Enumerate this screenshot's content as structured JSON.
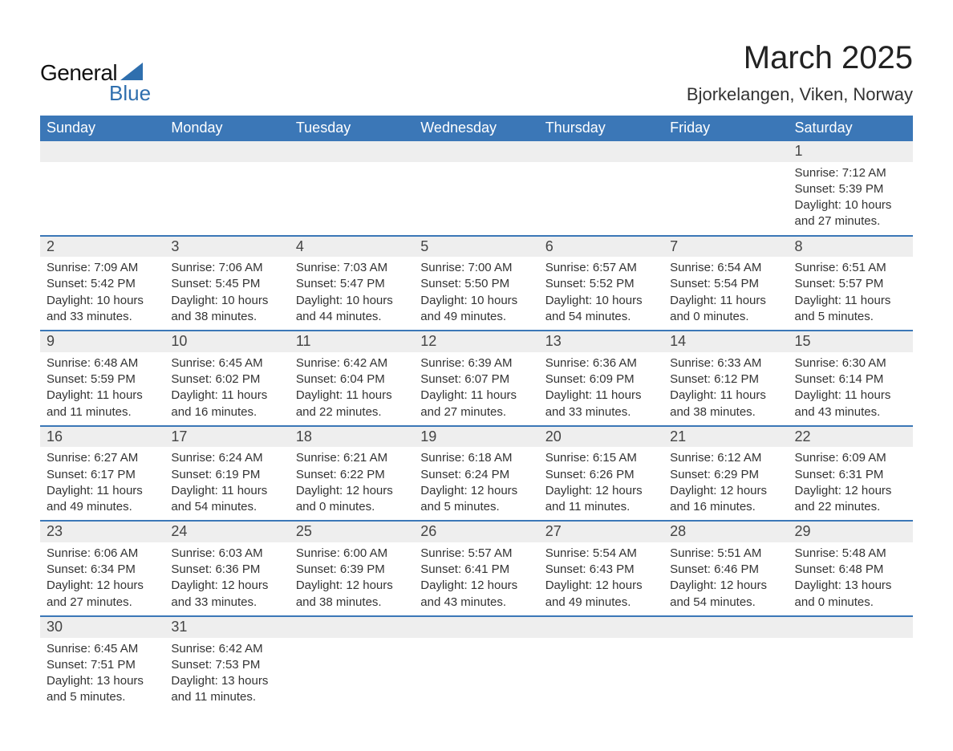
{
  "logo": {
    "general": "General",
    "blue": "Blue"
  },
  "title": {
    "month": "March 2025",
    "location": "Bjorkelangen, Viken, Norway"
  },
  "colors": {
    "header_bg": "#3b77b7",
    "header_text": "#ffffff",
    "daynum_bg": "#eeeeee",
    "border": "#3b77b7",
    "text": "#333333",
    "logo_blue": "#2f6fae"
  },
  "calendar": {
    "day_headers": [
      "Sunday",
      "Monday",
      "Tuesday",
      "Wednesday",
      "Thursday",
      "Friday",
      "Saturday"
    ],
    "weeks": [
      {
        "days": [
          null,
          null,
          null,
          null,
          null,
          null,
          {
            "n": "1",
            "sunrise": "Sunrise: 7:12 AM",
            "sunset": "Sunset: 5:39 PM",
            "daylight": "Daylight: 10 hours and 27 minutes."
          }
        ]
      },
      {
        "days": [
          {
            "n": "2",
            "sunrise": "Sunrise: 7:09 AM",
            "sunset": "Sunset: 5:42 PM",
            "daylight": "Daylight: 10 hours and 33 minutes."
          },
          {
            "n": "3",
            "sunrise": "Sunrise: 7:06 AM",
            "sunset": "Sunset: 5:45 PM",
            "daylight": "Daylight: 10 hours and 38 minutes."
          },
          {
            "n": "4",
            "sunrise": "Sunrise: 7:03 AM",
            "sunset": "Sunset: 5:47 PM",
            "daylight": "Daylight: 10 hours and 44 minutes."
          },
          {
            "n": "5",
            "sunrise": "Sunrise: 7:00 AM",
            "sunset": "Sunset: 5:50 PM",
            "daylight": "Daylight: 10 hours and 49 minutes."
          },
          {
            "n": "6",
            "sunrise": "Sunrise: 6:57 AM",
            "sunset": "Sunset: 5:52 PM",
            "daylight": "Daylight: 10 hours and 54 minutes."
          },
          {
            "n": "7",
            "sunrise": "Sunrise: 6:54 AM",
            "sunset": "Sunset: 5:54 PM",
            "daylight": "Daylight: 11 hours and 0 minutes."
          },
          {
            "n": "8",
            "sunrise": "Sunrise: 6:51 AM",
            "sunset": "Sunset: 5:57 PM",
            "daylight": "Daylight: 11 hours and 5 minutes."
          }
        ]
      },
      {
        "days": [
          {
            "n": "9",
            "sunrise": "Sunrise: 6:48 AM",
            "sunset": "Sunset: 5:59 PM",
            "daylight": "Daylight: 11 hours and 11 minutes."
          },
          {
            "n": "10",
            "sunrise": "Sunrise: 6:45 AM",
            "sunset": "Sunset: 6:02 PM",
            "daylight": "Daylight: 11 hours and 16 minutes."
          },
          {
            "n": "11",
            "sunrise": "Sunrise: 6:42 AM",
            "sunset": "Sunset: 6:04 PM",
            "daylight": "Daylight: 11 hours and 22 minutes."
          },
          {
            "n": "12",
            "sunrise": "Sunrise: 6:39 AM",
            "sunset": "Sunset: 6:07 PM",
            "daylight": "Daylight: 11 hours and 27 minutes."
          },
          {
            "n": "13",
            "sunrise": "Sunrise: 6:36 AM",
            "sunset": "Sunset: 6:09 PM",
            "daylight": "Daylight: 11 hours and 33 minutes."
          },
          {
            "n": "14",
            "sunrise": "Sunrise: 6:33 AM",
            "sunset": "Sunset: 6:12 PM",
            "daylight": "Daylight: 11 hours and 38 minutes."
          },
          {
            "n": "15",
            "sunrise": "Sunrise: 6:30 AM",
            "sunset": "Sunset: 6:14 PM",
            "daylight": "Daylight: 11 hours and 43 minutes."
          }
        ]
      },
      {
        "days": [
          {
            "n": "16",
            "sunrise": "Sunrise: 6:27 AM",
            "sunset": "Sunset: 6:17 PM",
            "daylight": "Daylight: 11 hours and 49 minutes."
          },
          {
            "n": "17",
            "sunrise": "Sunrise: 6:24 AM",
            "sunset": "Sunset: 6:19 PM",
            "daylight": "Daylight: 11 hours and 54 minutes."
          },
          {
            "n": "18",
            "sunrise": "Sunrise: 6:21 AM",
            "sunset": "Sunset: 6:22 PM",
            "daylight": "Daylight: 12 hours and 0 minutes."
          },
          {
            "n": "19",
            "sunrise": "Sunrise: 6:18 AM",
            "sunset": "Sunset: 6:24 PM",
            "daylight": "Daylight: 12 hours and 5 minutes."
          },
          {
            "n": "20",
            "sunrise": "Sunrise: 6:15 AM",
            "sunset": "Sunset: 6:26 PM",
            "daylight": "Daylight: 12 hours and 11 minutes."
          },
          {
            "n": "21",
            "sunrise": "Sunrise: 6:12 AM",
            "sunset": "Sunset: 6:29 PM",
            "daylight": "Daylight: 12 hours and 16 minutes."
          },
          {
            "n": "22",
            "sunrise": "Sunrise: 6:09 AM",
            "sunset": "Sunset: 6:31 PM",
            "daylight": "Daylight: 12 hours and 22 minutes."
          }
        ]
      },
      {
        "days": [
          {
            "n": "23",
            "sunrise": "Sunrise: 6:06 AM",
            "sunset": "Sunset: 6:34 PM",
            "daylight": "Daylight: 12 hours and 27 minutes."
          },
          {
            "n": "24",
            "sunrise": "Sunrise: 6:03 AM",
            "sunset": "Sunset: 6:36 PM",
            "daylight": "Daylight: 12 hours and 33 minutes."
          },
          {
            "n": "25",
            "sunrise": "Sunrise: 6:00 AM",
            "sunset": "Sunset: 6:39 PM",
            "daylight": "Daylight: 12 hours and 38 minutes."
          },
          {
            "n": "26",
            "sunrise": "Sunrise: 5:57 AM",
            "sunset": "Sunset: 6:41 PM",
            "daylight": "Daylight: 12 hours and 43 minutes."
          },
          {
            "n": "27",
            "sunrise": "Sunrise: 5:54 AM",
            "sunset": "Sunset: 6:43 PM",
            "daylight": "Daylight: 12 hours and 49 minutes."
          },
          {
            "n": "28",
            "sunrise": "Sunrise: 5:51 AM",
            "sunset": "Sunset: 6:46 PM",
            "daylight": "Daylight: 12 hours and 54 minutes."
          },
          {
            "n": "29",
            "sunrise": "Sunrise: 5:48 AM",
            "sunset": "Sunset: 6:48 PM",
            "daylight": "Daylight: 13 hours and 0 minutes."
          }
        ]
      },
      {
        "days": [
          {
            "n": "30",
            "sunrise": "Sunrise: 6:45 AM",
            "sunset": "Sunset: 7:51 PM",
            "daylight": "Daylight: 13 hours and 5 minutes."
          },
          {
            "n": "31",
            "sunrise": "Sunrise: 6:42 AM",
            "sunset": "Sunset: 7:53 PM",
            "daylight": "Daylight: 13 hours and 11 minutes."
          },
          null,
          null,
          null,
          null,
          null
        ]
      }
    ]
  }
}
